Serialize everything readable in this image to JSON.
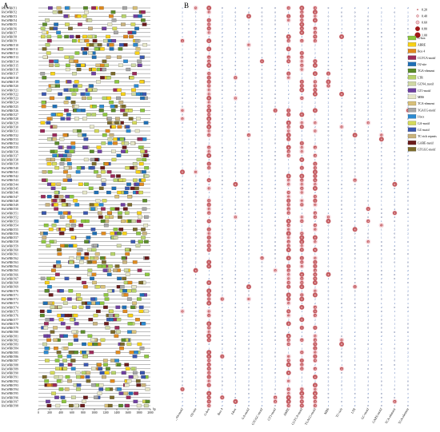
{
  "panel_a": {
    "label": "A",
    "genes": [
      "HvLWRKY1",
      "HvLWRKY2",
      "HvLWRKY3",
      "HvLWRKY4",
      "HvLWRKY5",
      "HvLWRKY6",
      "HvLWRKY7",
      "HvLWRKY8",
      "HvLWRKY9",
      "HvLWRKY10",
      "HvLWRKY11",
      "HvLWRKY12",
      "HvLWRKY13",
      "HvLWRKY14",
      "HvLWRKY15",
      "HvLWRKY16",
      "HvLWRKY17",
      "HvLWRKY18",
      "HvLWRKY19",
      "HvLWRKY20",
      "HvLWRKY21",
      "HvLWRKY22",
      "HvLWRKY23",
      "HvLWRKY24",
      "HvLWRKY25",
      "HvLWRKY26",
      "HvLWRKY27",
      "HvLWRKY28",
      "HvLWRKY29",
      "HvLWRKY30",
      "HvLWRKY31",
      "HvLWRKY32",
      "HvLWRKY33",
      "HvLWRKY34",
      "HvLWRKY35",
      "HvLWRKY36",
      "HvLWRKY37",
      "HvLWRKY38",
      "HvLWRKY39",
      "HvLWRKY40",
      "HvLWRKY41",
      "HvLWRKY42",
      "HvLWRKY43",
      "HvLWRKY44",
      "HvLWRKY45",
      "HvLWRKY46",
      "HvLWRKY47",
      "HvLWRKY48",
      "HvLWRKY49",
      "HvLWRKY50",
      "HvLWRKY51",
      "HvLWRKY52",
      "HvLWRKY53",
      "HvLWRKY54",
      "HvLWRKY55",
      "HvLWRKY56",
      "HvLWRKY57",
      "HvLWRKY58",
      "HvLWRKY59",
      "HvLWRKY60",
      "HvLWRKY61",
      "HvLWRKY62",
      "HvLWRKY63",
      "HvLWRKY64",
      "HvLWRKY65",
      "HvLWRKY66",
      "HvLWRKY67",
      "HvLWRKY68",
      "HvLWRKY69",
      "HvLWRKY70",
      "HvLWRKY71",
      "HvLWRKY72",
      "HvLWRKY73",
      "HvLWRKY74",
      "HvLWRKY75",
      "HvLWRKY76",
      "HvLWRKY77",
      "HvLWRKY78",
      "HvLWRKY79",
      "HvLWRKY80",
      "HvLWRKY81",
      "HvLWRKY82",
      "HvLWRKY83",
      "HvLWRKY84",
      "HvLWRKY85",
      "HvLWRKY86",
      "HvLWRKY87",
      "HvLWRKY88",
      "HvLWRKY89",
      "HvLWRKY90",
      "HvLWRKY91",
      "HvLWRKY92",
      "HvLWRKY93",
      "HvLWRKY94",
      "HvLWRKY95",
      "HvLWRKY96",
      "HvLWRKY97",
      "HvLWRKY98"
    ],
    "axis_ticks": [
      0,
      200,
      400,
      600,
      800,
      1000,
      1200,
      1400,
      1600,
      1800,
      2000
    ],
    "axis_unit": "bp"
  },
  "panel_b": {
    "label": "B",
    "columns": [
      "GCN4-motif",
      "O2-site",
      "G-box",
      "Box 4",
      "I-box",
      "GA-motif",
      "GTGGC-motif",
      "GT1-motif",
      "ABRE",
      "CGTCA-motif",
      "TGACG-motif",
      "MBS",
      "TC-rich",
      "LTR",
      "GC-motif",
      "GARE-motif",
      "TCA-element",
      "TGA-element"
    ]
  },
  "legend": {
    "size_scale": [
      "0.20",
      "0.40",
      "0.60",
      "0.80",
      "1.00"
    ],
    "motif_colors": [
      {
        "name": "G-box",
        "color": "#8cc63f"
      },
      {
        "name": "ABRE",
        "color": "#f7d117"
      },
      {
        "name": "Box 4",
        "color": "#e08a1e"
      },
      {
        "name": "CGTCA-motif",
        "color": "#9b2a5a"
      },
      {
        "name": "O2-site",
        "color": "#1f6fb5"
      },
      {
        "name": "TGA-element",
        "color": "#5b8c2a"
      },
      {
        "name": "LTR",
        "color": "#b7d36b"
      },
      {
        "name": "GCN4_motif",
        "color": "#cfd8a4"
      },
      {
        "name": "GT1-motif",
        "color": "#6e3fa0"
      },
      {
        "name": "MBS",
        "color": "#e6e6c8"
      },
      {
        "name": "TCA-element",
        "color": "#d8c07a"
      },
      {
        "name": "TGACG-motif",
        "color": "#a7a7a7"
      },
      {
        "name": "I-box",
        "color": "#2b8ad1"
      },
      {
        "name": "GA-motif",
        "color": "#d4d95a"
      },
      {
        "name": "GC-motif",
        "color": "#3a57b0"
      },
      {
        "name": "TC-rich repeats",
        "color": "#c9b27c"
      },
      {
        "name": "GARE-motif",
        "color": "#6a1b1b"
      },
      {
        "name": "GTGGC-motif",
        "color": "#7b6a2a"
      }
    ]
  }
}
